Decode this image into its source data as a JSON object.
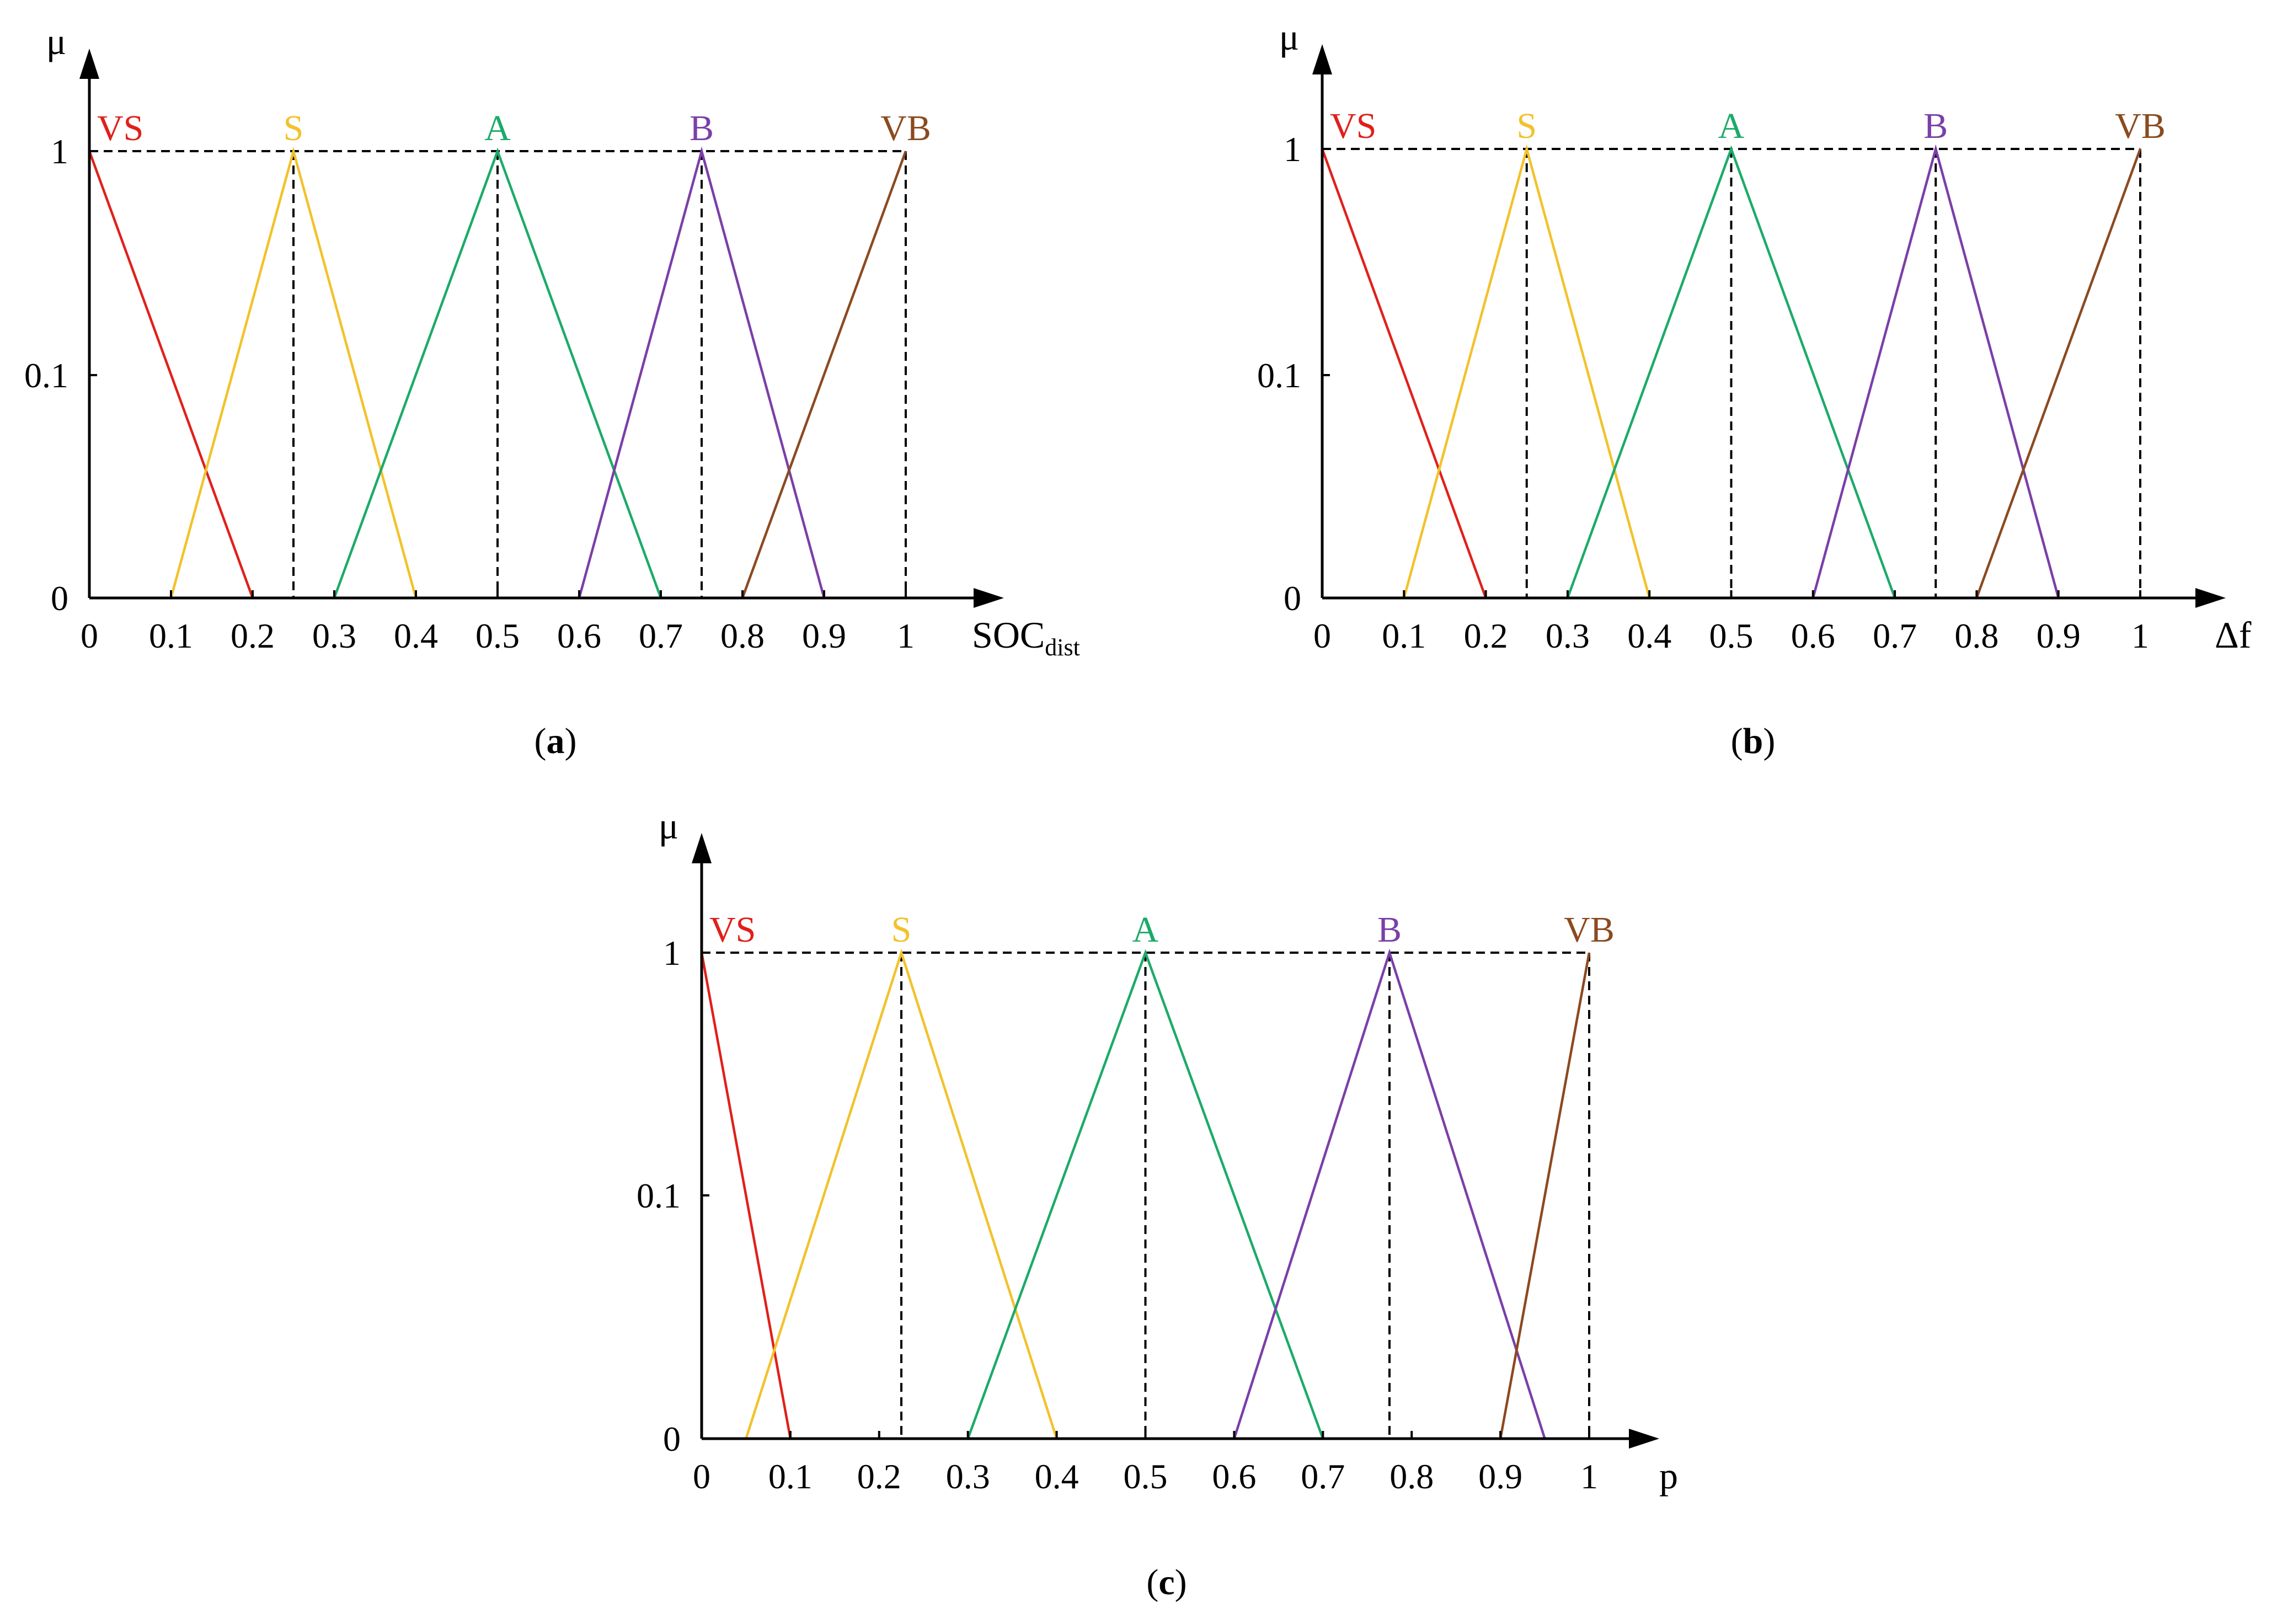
{
  "chart_data": [
    {
      "type": "line",
      "panel": "a",
      "caption_open": "(",
      "caption_letter": "a",
      "caption_close": ")",
      "y_axis_label": "μ",
      "x_axis_label_main": "SOC",
      "x_axis_label_sub": "dist",
      "x_ticks": [
        0,
        0.1,
        0.2,
        0.3,
        0.4,
        0.5,
        0.6,
        0.7,
        0.8,
        0.9,
        1
      ],
      "x_tick_labels": [
        "0",
        "0.1",
        "0.2",
        "0.3",
        "0.4",
        "0.5",
        "0.6",
        "0.7",
        "0.8",
        "0.9",
        "1"
      ],
      "y_ticks": [
        0,
        0.1,
        1
      ],
      "y_tick_labels": [
        "0",
        "0.1",
        "1"
      ],
      "xlim": [
        0,
        1
      ],
      "series": [
        {
          "name": "VS",
          "color": "#e0201b",
          "points": [
            [
              0,
              1
            ],
            [
              0.2,
              0
            ]
          ]
        },
        {
          "name": "S",
          "color": "#f2c22b",
          "points": [
            [
              0.1,
              0
            ],
            [
              0.25,
              1
            ],
            [
              0.4,
              0
            ]
          ]
        },
        {
          "name": "A",
          "color": "#1daa6a",
          "points": [
            [
              0.3,
              0
            ],
            [
              0.5,
              1
            ],
            [
              0.7,
              0
            ]
          ]
        },
        {
          "name": "B",
          "color": "#7b3fa8",
          "points": [
            [
              0.6,
              0
            ],
            [
              0.75,
              1
            ],
            [
              0.9,
              0
            ]
          ]
        },
        {
          "name": "VB",
          "color": "#8b4a1f",
          "points": [
            [
              0.8,
              0
            ],
            [
              1,
              1
            ]
          ]
        }
      ],
      "peak_guides": [
        0.25,
        0.5,
        0.75,
        1
      ]
    },
    {
      "type": "line",
      "panel": "b",
      "caption_open": "(",
      "caption_letter": "b",
      "caption_close": ")",
      "y_axis_label": "μ",
      "x_axis_label_main": "Δf",
      "x_axis_label_sub": "",
      "x_ticks": [
        0,
        0.1,
        0.2,
        0.3,
        0.4,
        0.5,
        0.6,
        0.7,
        0.8,
        0.9,
        1
      ],
      "x_tick_labels": [
        "0",
        "0.1",
        "0.2",
        "0.3",
        "0.4",
        "0.5",
        "0.6",
        "0.7",
        "0.8",
        "0.9",
        "1"
      ],
      "y_ticks": [
        0,
        0.1,
        1
      ],
      "y_tick_labels": [
        "0",
        "0.1",
        "1"
      ],
      "xlim": [
        0,
        1
      ],
      "series": [
        {
          "name": "VS",
          "color": "#e0201b",
          "points": [
            [
              0,
              1
            ],
            [
              0.2,
              0
            ]
          ]
        },
        {
          "name": "S",
          "color": "#f2c22b",
          "points": [
            [
              0.1,
              0
            ],
            [
              0.25,
              1
            ],
            [
              0.4,
              0
            ]
          ]
        },
        {
          "name": "A",
          "color": "#1daa6a",
          "points": [
            [
              0.3,
              0
            ],
            [
              0.5,
              1
            ],
            [
              0.7,
              0
            ]
          ]
        },
        {
          "name": "B",
          "color": "#7b3fa8",
          "points": [
            [
              0.6,
              0
            ],
            [
              0.75,
              1
            ],
            [
              0.9,
              0
            ]
          ]
        },
        {
          "name": "VB",
          "color": "#8b4a1f",
          "points": [
            [
              0.8,
              0
            ],
            [
              1,
              1
            ]
          ]
        }
      ],
      "peak_guides": [
        0.25,
        0.5,
        0.75,
        1
      ]
    },
    {
      "type": "line",
      "panel": "c",
      "caption_open": "(",
      "caption_letter": "c",
      "caption_close": ")",
      "y_axis_label": "μ",
      "x_axis_label_main": "p",
      "x_axis_label_sub": "",
      "x_ticks": [
        0,
        0.1,
        0.2,
        0.3,
        0.4,
        0.5,
        0.6,
        0.7,
        0.8,
        0.9,
        1
      ],
      "x_tick_labels": [
        "0",
        "0.1",
        "0.2",
        "0.3",
        "0.4",
        "0.5",
        "0.6",
        "0.7",
        "0.8",
        "0.9",
        "1"
      ],
      "y_ticks": [
        0,
        0.1,
        1
      ],
      "y_tick_labels": [
        "0",
        "0.1",
        "1"
      ],
      "xlim": [
        0,
        1
      ],
      "series": [
        {
          "name": "VS",
          "color": "#e0201b",
          "points": [
            [
              0,
              1
            ],
            [
              0.1,
              0
            ]
          ]
        },
        {
          "name": "S",
          "color": "#f2c22b",
          "points": [
            [
              0.05,
              0
            ],
            [
              0.225,
              1
            ],
            [
              0.4,
              0
            ]
          ]
        },
        {
          "name": "A",
          "color": "#1daa6a",
          "points": [
            [
              0.3,
              0
            ],
            [
              0.5,
              1
            ],
            [
              0.7,
              0
            ]
          ]
        },
        {
          "name": "B",
          "color": "#7b3fa8",
          "points": [
            [
              0.6,
              0
            ],
            [
              0.775,
              1
            ],
            [
              0.95,
              0
            ]
          ]
        },
        {
          "name": "VB",
          "color": "#8b4a1f",
          "points": [
            [
              0.9,
              0
            ],
            [
              1,
              1
            ]
          ]
        }
      ],
      "peak_guides": [
        0.225,
        0.5,
        0.775,
        1
      ]
    }
  ]
}
